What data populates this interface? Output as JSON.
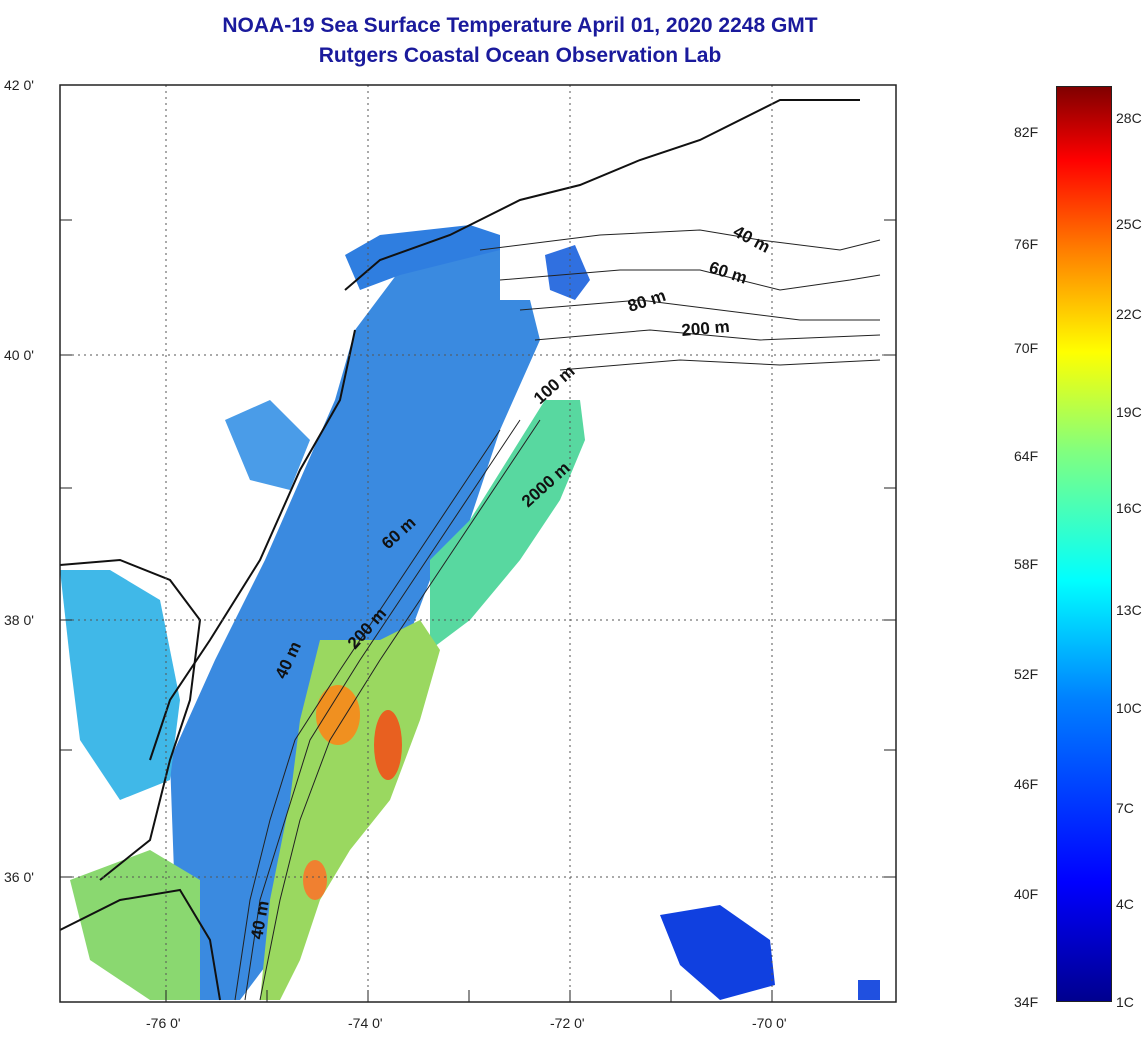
{
  "title": {
    "line1": "NOAA-19 Sea Surface Temperature April 01, 2020 2248 GMT",
    "line2": "Rutgers Coastal Ocean Observation Lab"
  },
  "map": {
    "lat_labels": [
      "42 0'",
      "40 0'",
      "38 0'",
      "36 0'"
    ],
    "lon_labels": [
      "-76 0'",
      "-74 0'",
      "-72 0'",
      "-70 0'"
    ],
    "contour_labels": [
      "40 m",
      "60 m",
      "80 m",
      "200 m",
      "100 m",
      "2000 m",
      "60 m",
      "200 m",
      "40 m",
      "40 m"
    ]
  },
  "colorbar": {
    "fahrenheit": [
      "82F",
      "76F",
      "70F",
      "64F",
      "58F",
      "52F",
      "46F",
      "40F",
      "34F"
    ],
    "celsius": [
      "28C",
      "25C",
      "22C",
      "19C",
      "16C",
      "13C",
      "10C",
      "7C",
      "4C",
      "1C"
    ],
    "colors": [
      "#00008f",
      "#0000ff",
      "#0080ff",
      "#00ffff",
      "#80ff80",
      "#ffff00",
      "#ff8000",
      "#ff0000",
      "#800000"
    ]
  }
}
